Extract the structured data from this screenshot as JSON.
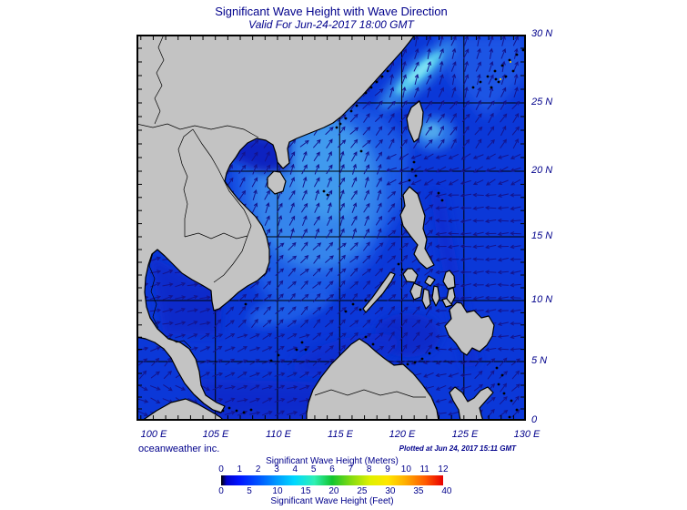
{
  "title": "Significant Wave Height with Wave Direction",
  "subtitle": "Valid For Jun-24-2017 18:00 GMT",
  "credit": "oceanweather inc.",
  "plotted_at": "Plotted at Jun 24, 2017 15:11 GMT",
  "axes": {
    "x_ticks": [
      "100 E",
      "105 E",
      "110 E",
      "115 E",
      "120 E",
      "125 E",
      "130 E"
    ],
    "y_ticks": [
      "30 N",
      "25 N",
      "20 N",
      "15 N",
      "10 N",
      "5 N",
      "0"
    ]
  },
  "legend": {
    "meters_label": "Significant Wave Height (Meters)",
    "feet_label": "Significant Wave Height (Feet)",
    "meters_ticks": [
      0,
      1,
      2,
      3,
      4,
      5,
      6,
      7,
      8,
      9,
      10,
      11,
      12
    ],
    "feet_ticks": [
      0,
      5,
      10,
      15,
      20,
      25,
      30,
      35,
      40
    ],
    "gradient": [
      [
        0,
        "#000000"
      ],
      [
        2.5,
        "#0000cc"
      ],
      [
        8,
        "#0013ff"
      ],
      [
        17,
        "#0055ff"
      ],
      [
        25,
        "#0099ff"
      ],
      [
        33,
        "#00d8ff"
      ],
      [
        42,
        "#2ff0b4"
      ],
      [
        50,
        "#12c52e"
      ],
      [
        58,
        "#7eda12"
      ],
      [
        67,
        "#dff000"
      ],
      [
        75,
        "#ffe600"
      ],
      [
        83,
        "#ffae00"
      ],
      [
        92,
        "#ff5a00"
      ],
      [
        100,
        "#e90000"
      ]
    ]
  },
  "colors": {
    "text": "#00008b",
    "sea_base": "#0b38d8",
    "land": "#c3c3c3",
    "coastline": "#000000",
    "arrow": "#14148c"
  },
  "map": {
    "lon_range": [
      98.65,
      130
    ],
    "lat_range": [
      0,
      30
    ],
    "arrow_field": {
      "rules": [
        {
          "lon": [
            119,
            130
          ],
          "lat": [
            25,
            30
          ],
          "dir": 72
        },
        {
          "lon": [
            118.5,
            130
          ],
          "lat": [
            21.5,
            25
          ],
          "dir": 55
        },
        {
          "lon": [
            119,
            130
          ],
          "lat": [
            18.5,
            21.5
          ],
          "dir": 205
        },
        {
          "lon": [
            122.5,
            130
          ],
          "lat": [
            5,
            18.5
          ],
          "dir": 185
        },
        {
          "lon": [
            113,
            118.5
          ],
          "lat": [
            21.8,
            27
          ],
          "dir": 48
        },
        {
          "lon": [
            108,
            119
          ],
          "lat": [
            15,
            21.8
          ],
          "dir": 65
        },
        {
          "lon": [
            104,
            108
          ],
          "lat": [
            16.5,
            21.8
          ],
          "dir": 55
        },
        {
          "lon": [
            105,
            118.5
          ],
          "lat": [
            8,
            15
          ],
          "dir": 45
        },
        {
          "lon": [
            113,
            118.5
          ],
          "lat": [
            2,
            8
          ],
          "dir": 40
        },
        {
          "lon": [
            102,
            113
          ],
          "lat": [
            3.5,
            8
          ],
          "dir": 25
        },
        {
          "lon": [
            98.6,
            105
          ],
          "lat": [
            5,
            13.5
          ],
          "dir": 15
        },
        {
          "lon": [
            117,
            122.5
          ],
          "lat": [
            5.5,
            9.5
          ],
          "dir": 50
        },
        {
          "lon": [
            116,
            126
          ],
          "lat": [
            0,
            5.5
          ],
          "dir": 195
        },
        {
          "lon": [
            99,
            104.5
          ],
          "lat": [
            0,
            3.5
          ],
          "dir": 335
        },
        {
          "lon": [
            104.5,
            116
          ],
          "lat": [
            0,
            3.5
          ],
          "dir": 20
        }
      ],
      "default_dir": 45
    }
  }
}
